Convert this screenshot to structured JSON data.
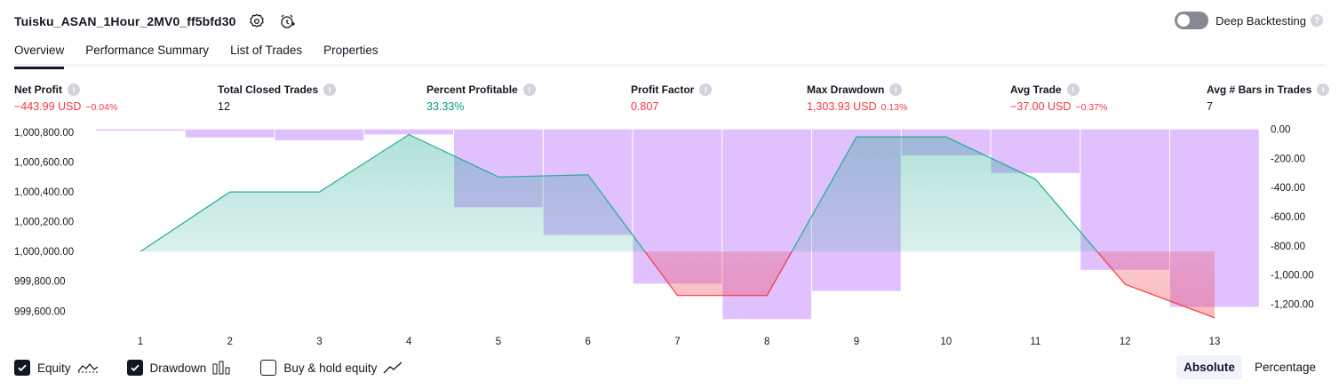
{
  "header": {
    "strategy_name": "Tuisku_ASAN_1Hour_2MV0_ff5bfd30",
    "icons": [
      "gear-icon",
      "alert-add-icon"
    ],
    "deep_backtesting_label": "Deep Backtesting",
    "deep_backtesting_enabled": false,
    "help_glyph": "?"
  },
  "tabs": [
    {
      "label": "Overview",
      "active": true
    },
    {
      "label": "Performance Summary",
      "active": false
    },
    {
      "label": "List of Trades",
      "active": false
    },
    {
      "label": "Properties",
      "active": false
    }
  ],
  "metrics": [
    {
      "label": "Net Profit",
      "value": "−443.99 USD",
      "pct": "−0.04%",
      "tone": "neg"
    },
    {
      "label": "Total Closed Trades",
      "value": "12",
      "pct": "",
      "tone": "neu"
    },
    {
      "label": "Percent Profitable",
      "value": "33.33%",
      "pct": "",
      "tone": "pos"
    },
    {
      "label": "Profit Factor",
      "value": "0.807",
      "pct": "",
      "tone": "neg"
    },
    {
      "label": "Max Drawdown",
      "value": "1,303.93 USD",
      "pct": "0.13%",
      "tone": "neg"
    },
    {
      "label": "Avg Trade",
      "value": "−37.00 USD",
      "pct": "−0.37%",
      "tone": "neg"
    },
    {
      "label": "Avg # Bars in Trades",
      "value": "7",
      "pct": "",
      "tone": "neu"
    }
  ],
  "chart_data": {
    "type": "line",
    "title": "",
    "x": [
      1,
      2,
      3,
      4,
      5,
      6,
      7,
      8,
      9,
      10,
      11,
      12,
      13
    ],
    "x_tick_labels": [
      "1",
      "2",
      "3",
      "4",
      "5",
      "6",
      "7",
      "8",
      "9",
      "10",
      "11",
      "12",
      "13"
    ],
    "equity_baseline": 1000000,
    "series": [
      {
        "name": "Equity",
        "axis": "left",
        "values": [
          1000000,
          1000400,
          1000400,
          1000785,
          1000500,
          1000515,
          999705,
          999705,
          1000770,
          1000770,
          1000485,
          999780,
          999555
        ]
      },
      {
        "name": "Drawdown",
        "axis": "right",
        "style": "bar",
        "values": [
          0,
          -55,
          -75,
          -35,
          -535,
          -725,
          -1060,
          -1303.93,
          -1110,
          -180,
          -300,
          -965,
          -1220
        ]
      }
    ],
    "left_axis": {
      "ylim": [
        999530,
        1000830
      ],
      "ticks": [
        1000800,
        1000600,
        1000400,
        1000200,
        1000000,
        999800,
        999600
      ],
      "tick_labels": [
        "1,000,800.00",
        "1,000,600.00",
        "1,000,400.00",
        "1,000,200.00",
        "1,000,000.00",
        "999,800.00",
        "999,600.00"
      ]
    },
    "right_axis": {
      "ylim": [
        -1320,
        10
      ],
      "ticks": [
        0,
        -200,
        -400,
        -600,
        -800,
        -1000,
        -1200
      ],
      "tick_labels": [
        "0.00",
        "-200.00",
        "-400.00",
        "-600.00",
        "-800.00",
        "-1,000.00",
        "-1,200.00"
      ]
    },
    "colors": {
      "equity_up": "#22ab94",
      "equity_down": "#f23645",
      "drawdown_bar": "#c78cfb"
    },
    "grid": false
  },
  "legend": [
    {
      "label": "Equity",
      "checked": true,
      "glyph": "equity-glyph-icon"
    },
    {
      "label": "Drawdown",
      "checked": true,
      "glyph": "drawdown-bars-icon"
    },
    {
      "label": "Buy & hold equity",
      "checked": false,
      "glyph": "line-trend-icon"
    }
  ],
  "modes": [
    {
      "label": "Absolute",
      "active": true
    },
    {
      "label": "Percentage",
      "active": false
    }
  ]
}
